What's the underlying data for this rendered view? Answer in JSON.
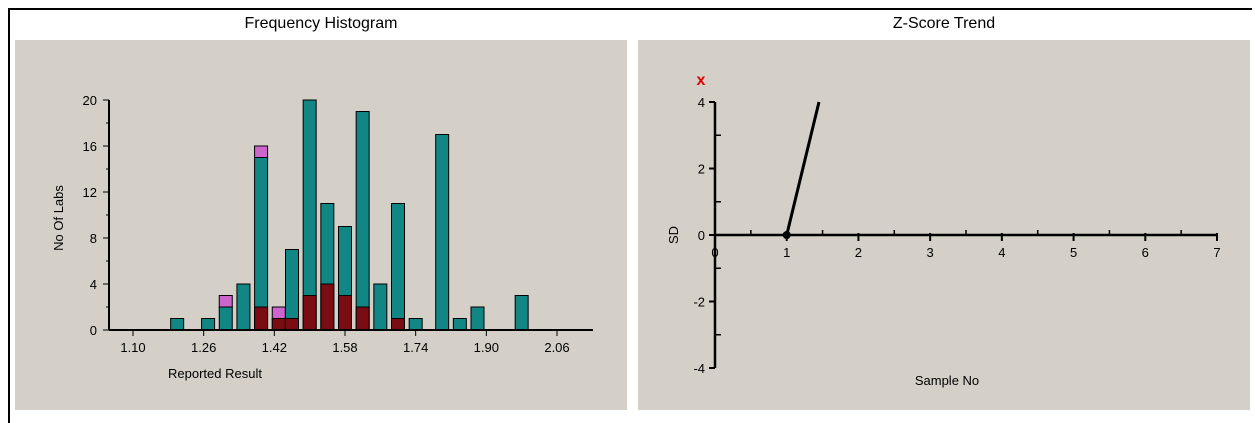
{
  "colors": {
    "panel_bg": "#d4d0c8",
    "bar_total": "#128585",
    "bar_flagged": "#7a0d14",
    "bar_excluded": "#cc66cc",
    "marker": "#e00000"
  },
  "histogram": {
    "title": "Frequency Histogram",
    "xlabel": "Reported Result",
    "ylabel": "No Of Labs"
  },
  "zscore": {
    "title": "Z-Score Trend",
    "xlabel": "Sample No",
    "ylabel": "SD",
    "marker": "x"
  },
  "chart_data": [
    {
      "type": "bar",
      "title": "Frequency Histogram",
      "xlabel": "Reported Result",
      "ylabel": "No Of Labs",
      "ylim": [
        0,
        20
      ],
      "xlim": [
        1.06,
        2.12
      ],
      "x_ticks": [
        "1.10",
        "1.26",
        "1.42",
        "1.58",
        "1.74",
        "1.90",
        "2.06"
      ],
      "y_ticks": [
        "0",
        "4",
        "8",
        "12",
        "16",
        "20"
      ],
      "x": [
        1.2,
        1.27,
        1.31,
        1.35,
        1.39,
        1.43,
        1.46,
        1.5,
        1.54,
        1.58,
        1.62,
        1.66,
        1.7,
        1.74,
        1.8,
        1.84,
        1.88,
        1.98
      ],
      "series": [
        {
          "values": [
            1,
            1,
            2,
            4,
            15,
            1,
            7,
            20,
            11,
            9,
            19,
            4,
            11,
            1,
            17,
            1,
            2,
            3
          ]
        },
        {
          "values": [
            0,
            0,
            0,
            0,
            2,
            1,
            1,
            3,
            4,
            3,
            2,
            0,
            1,
            0,
            0,
            0,
            0,
            0
          ]
        },
        {
          "values": [
            0,
            0,
            1,
            0,
            1,
            1,
            0,
            0,
            0,
            0,
            0,
            0,
            0,
            0,
            0,
            0,
            0,
            0
          ]
        }
      ],
      "grid": false
    },
    {
      "type": "line",
      "title": "Z-Score Trend",
      "xlabel": "Sample No",
      "ylabel": "SD",
      "xlim": [
        0,
        7
      ],
      "ylim": [
        -4,
        4
      ],
      "x_ticks": [
        "0",
        "1",
        "2",
        "3",
        "4",
        "5",
        "6",
        "7"
      ],
      "y_ticks": [
        "-4",
        "-2",
        "0",
        "2",
        "4"
      ],
      "points": [
        {
          "x": 1,
          "y": 0
        },
        {
          "x": 1.45,
          "y": 4
        }
      ],
      "grid": false
    }
  ]
}
